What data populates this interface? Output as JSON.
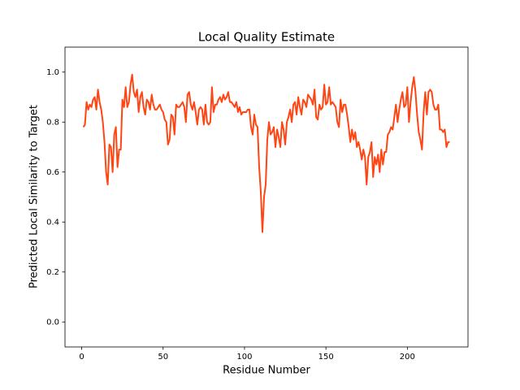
{
  "chart_data": {
    "type": "line",
    "title": "Local Quality Estimate",
    "x_label": "Residue Number",
    "y_label": "Predicted Local Similarity to Target",
    "x": [
      1,
      2,
      3,
      4,
      5,
      6,
      7,
      8,
      9,
      10,
      11,
      12,
      13,
      14,
      15,
      16,
      17,
      18,
      19,
      20,
      21,
      22,
      23,
      24,
      25,
      26,
      27,
      28,
      29,
      30,
      31,
      32,
      33,
      34,
      35,
      36,
      37,
      38,
      39,
      40,
      41,
      42,
      43,
      44,
      45,
      46,
      47,
      48,
      49,
      50,
      51,
      52,
      53,
      54,
      55,
      56,
      57,
      58,
      59,
      60,
      61,
      62,
      63,
      64,
      65,
      66,
      67,
      68,
      69,
      70,
      71,
      72,
      73,
      74,
      75,
      76,
      77,
      78,
      79,
      80,
      81,
      82,
      83,
      84,
      85,
      86,
      87,
      88,
      89,
      90,
      91,
      92,
      93,
      94,
      95,
      96,
      97,
      98,
      99,
      100,
      101,
      102,
      103,
      104,
      105,
      106,
      107,
      108,
      109,
      110,
      111,
      112,
      113,
      114,
      115,
      116,
      117,
      118,
      119,
      120,
      121,
      122,
      123,
      124,
      125,
      126,
      127,
      128,
      129,
      130,
      131,
      132,
      133,
      134,
      135,
      136,
      137,
      138,
      139,
      140,
      141,
      142,
      143,
      144,
      145,
      146,
      147,
      148,
      149,
      150,
      151,
      152,
      153,
      154,
      155,
      156,
      157,
      158,
      159,
      160,
      161,
      162,
      163,
      164,
      165,
      166,
      167,
      168,
      169,
      170,
      171,
      172,
      173,
      174,
      175,
      176,
      177,
      178,
      179,
      180,
      181,
      182,
      183,
      184,
      185,
      186,
      187,
      188,
      189,
      190,
      191,
      192,
      193,
      194,
      195,
      196,
      197,
      198,
      199,
      200,
      201,
      202,
      203,
      204,
      205,
      206,
      207,
      208,
      209,
      210,
      211,
      212,
      213,
      214,
      215,
      216,
      217,
      218,
      219,
      220,
      221,
      222,
      223,
      224,
      225,
      226
    ],
    "series": [
      {
        "color": "#ff4513",
        "values": [
          0.78,
          0.79,
          0.88,
          0.85,
          0.87,
          0.86,
          0.89,
          0.9,
          0.85,
          0.93,
          0.88,
          0.85,
          0.8,
          0.72,
          0.6,
          0.55,
          0.71,
          0.7,
          0.6,
          0.75,
          0.78,
          0.62,
          0.69,
          0.69,
          0.89,
          0.86,
          0.94,
          0.86,
          0.88,
          0.95,
          0.99,
          0.92,
          0.9,
          0.93,
          0.84,
          0.9,
          0.92,
          0.86,
          0.83,
          0.89,
          0.88,
          0.85,
          0.91,
          0.87,
          0.85,
          0.85,
          0.86,
          0.87,
          0.85,
          0.84,
          0.81,
          0.8,
          0.71,
          0.73,
          0.83,
          0.82,
          0.75,
          0.87,
          0.86,
          0.86,
          0.87,
          0.88,
          0.86,
          0.8,
          0.91,
          0.92,
          0.87,
          0.85,
          0.88,
          0.84,
          0.79,
          0.85,
          0.86,
          0.85,
          0.79,
          0.87,
          0.8,
          0.79,
          0.8,
          0.94,
          0.84,
          0.87,
          0.87,
          0.89,
          0.9,
          0.88,
          0.91,
          0.89,
          0.9,
          0.92,
          0.88,
          0.88,
          0.87,
          0.86,
          0.88,
          0.84,
          0.86,
          0.83,
          0.84,
          0.84,
          0.84,
          0.85,
          0.85,
          0.78,
          0.75,
          0.83,
          0.79,
          0.78,
          0.62,
          0.52,
          0.36,
          0.5,
          0.55,
          0.73,
          0.8,
          0.75,
          0.76,
          0.78,
          0.7,
          0.77,
          0.74,
          0.7,
          0.8,
          0.77,
          0.71,
          0.8,
          0.82,
          0.85,
          0.8,
          0.87,
          0.88,
          0.83,
          0.9,
          0.86,
          0.83,
          0.89,
          0.88,
          0.86,
          0.91,
          0.9,
          0.89,
          0.87,
          0.93,
          0.82,
          0.81,
          0.87,
          0.85,
          0.86,
          0.95,
          0.87,
          0.88,
          0.94,
          0.87,
          0.88,
          0.87,
          0.86,
          0.8,
          0.78,
          0.89,
          0.84,
          0.87,
          0.87,
          0.83,
          0.78,
          0.72,
          0.77,
          0.73,
          0.76,
          0.7,
          0.72,
          0.69,
          0.65,
          0.69,
          0.66,
          0.55,
          0.66,
          0.68,
          0.72,
          0.58,
          0.66,
          0.63,
          0.67,
          0.6,
          0.69,
          0.63,
          0.68,
          0.68,
          0.75,
          0.76,
          0.78,
          0.77,
          0.82,
          0.87,
          0.8,
          0.85,
          0.89,
          0.92,
          0.86,
          0.87,
          0.94,
          0.8,
          0.88,
          0.94,
          0.98,
          0.92,
          0.83,
          0.76,
          0.73,
          0.69,
          0.84,
          0.92,
          0.83,
          0.92,
          0.93,
          0.92,
          0.87,
          0.85,
          0.85,
          0.87,
          0.77,
          0.77,
          0.76,
          0.77,
          0.7,
          0.72,
          0.72
        ]
      }
    ],
    "xlim": [
      -10.25,
      237.25
    ],
    "ylim": [
      -0.1,
      1.1
    ],
    "xticks": [
      0,
      50,
      100,
      150,
      200
    ],
    "yticks": [
      {
        "value": 0,
        "label": "0.0"
      },
      0.2,
      0.4,
      0.6,
      0.8,
      {
        "value": 1,
        "label": "1.0"
      }
    ],
    "grid": false
  }
}
